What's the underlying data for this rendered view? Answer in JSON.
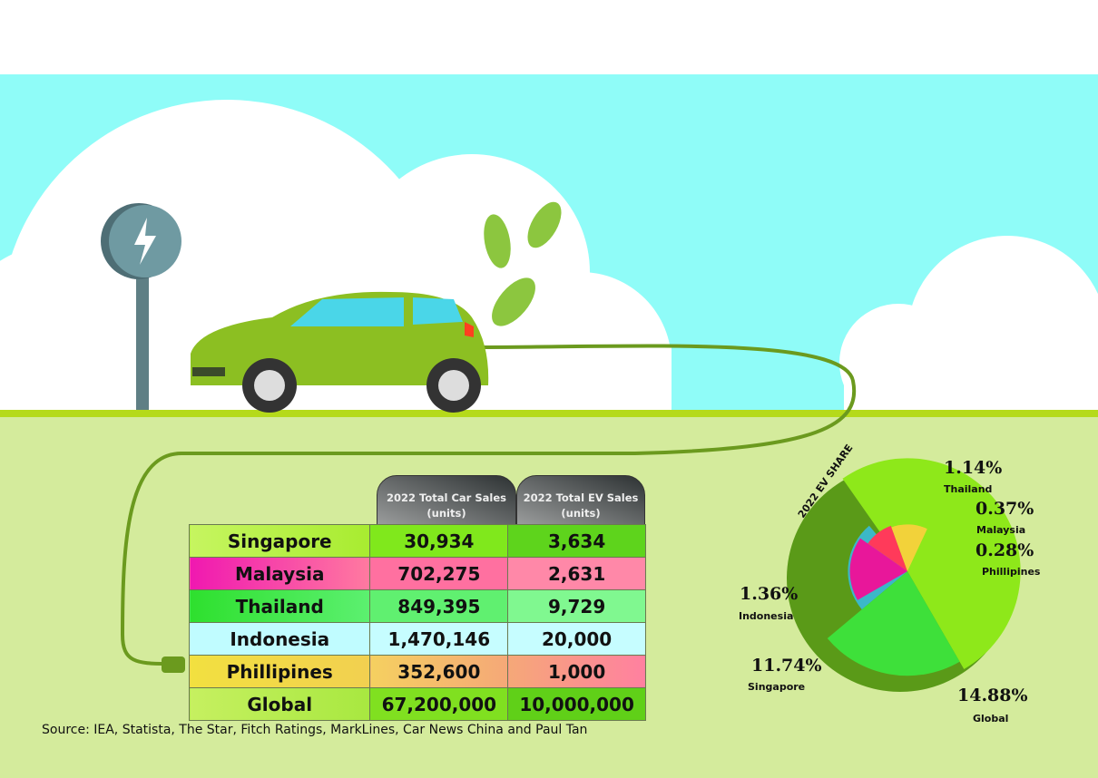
{
  "table": {
    "headers": [
      "2022 Total Car Sales (units)",
      "2022 Total EV Sales (units)"
    ],
    "rows": [
      {
        "country": "Singapore",
        "car_sales": "30,934",
        "ev_sales": "3,634"
      },
      {
        "country": "Malaysia",
        "car_sales": "702,275",
        "ev_sales": "2,631"
      },
      {
        "country": "Thailand",
        "car_sales": "849,395",
        "ev_sales": "9,729"
      },
      {
        "country": "Indonesia",
        "car_sales": "1,470,146",
        "ev_sales": "20,000"
      },
      {
        "country": "Phillipines",
        "car_sales": "352,600",
        "ev_sales": "1,000"
      },
      {
        "country": "Global",
        "car_sales": "67,200,000",
        "ev_sales": "10,000,000"
      }
    ]
  },
  "source": "Source: IEA, Statista, The Star, Fitch Ratings, MarkLines, Car News China and Paul Tan",
  "chart_data": {
    "type": "pie",
    "title": "2022 EV SHARE",
    "categories": [
      "Thailand",
      "Malaysia",
      "Phillipines",
      "Global",
      "Singapore",
      "Indonesia"
    ],
    "values": [
      1.14,
      0.37,
      0.28,
      14.88,
      11.74,
      1.36
    ],
    "labels": [
      "1.14%",
      "0.37%",
      "0.28%",
      "14.88%",
      "11.74%",
      "1.36%"
    ],
    "colors": [
      "#e8179a",
      "#ff3a5a",
      "#f2d23a",
      "#8ee81a",
      "#3ee03a",
      "#3bb8c8"
    ]
  },
  "colors": {
    "sky": "#8ffcf8",
    "ground": "#d4eb9c",
    "grass": "#b5da1a",
    "car": "#8cbf22"
  }
}
